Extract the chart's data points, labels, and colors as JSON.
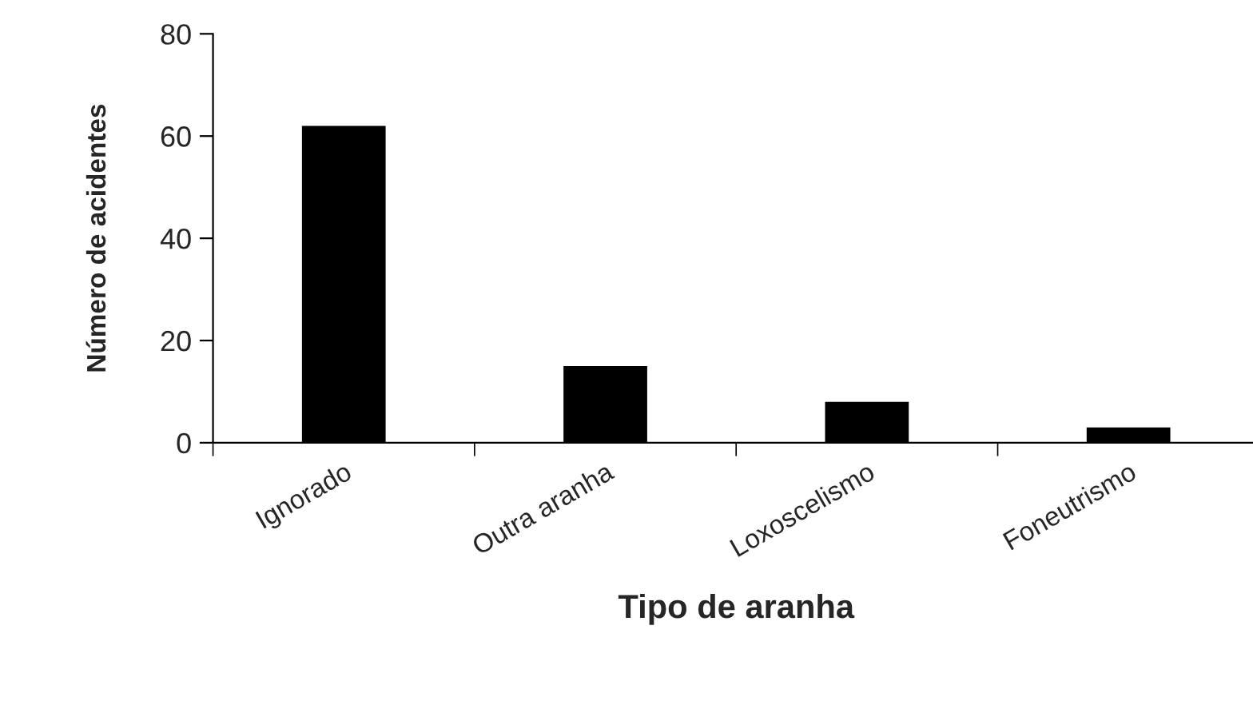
{
  "chart_data": {
    "type": "bar",
    "xlabel": "Tipo de aranha",
    "ylabel": "Número de acidentes",
    "categories": [
      "Ignorado",
      "Outra aranha",
      "Loxoscelismo",
      "Foneutrismo"
    ],
    "values": [
      62,
      15,
      8,
      3
    ],
    "color": "#000000",
    "ylim": [
      0,
      80
    ],
    "yticks": [
      0,
      20,
      40,
      60,
      80
    ],
    "grid": false,
    "legend": false
  }
}
